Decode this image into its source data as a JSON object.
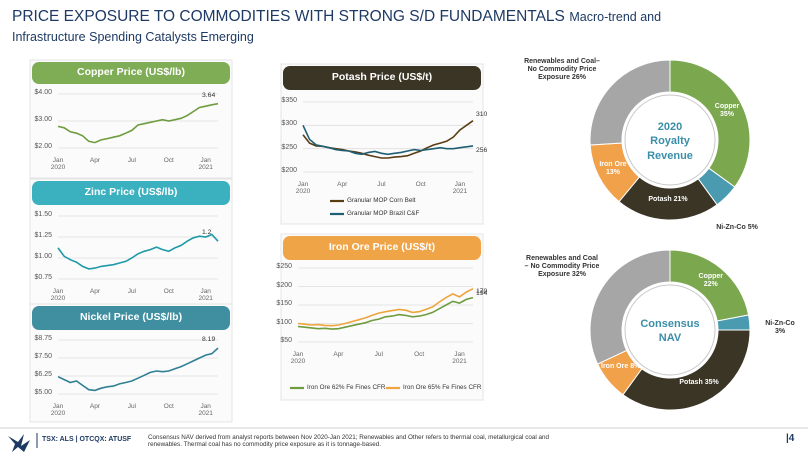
{
  "header": {
    "title": "PRICE EXPOSURE TO COMMODITIES WITH STRONG S/D FUNDAMENTALS",
    "subtitle": "Macro-trend and Infrastructure Spending Catalysts Emerging"
  },
  "chart_data": [
    {
      "type": "line",
      "title": "Copper Price (US$/lb)",
      "categories": [
        "Jan\n2020",
        null,
        null,
        null,
        null,
        null,
        "Apr",
        null,
        null,
        null,
        null,
        null,
        "Jul",
        null,
        null,
        null,
        null,
        null,
        "Oct",
        null,
        null,
        null,
        null,
        null,
        "Jan\n2021",
        null,
        null
      ],
      "series": [
        {
          "name": null,
          "color": "#6e9c3f",
          "values": [
            2.8,
            2.75,
            2.6,
            2.55,
            2.45,
            2.25,
            2.2,
            2.3,
            2.35,
            2.4,
            2.45,
            2.55,
            2.65,
            2.85,
            2.9,
            2.95,
            3.0,
            3.05,
            3.0,
            3.05,
            3.1,
            3.2,
            3.35,
            3.5,
            3.55,
            3.6,
            3.64
          ]
        }
      ],
      "ylim": [
        2,
        4
      ],
      "yticks": [
        {
          "value": 2,
          "label": "$2.00"
        },
        {
          "value": 3,
          "label": "$3.00"
        },
        {
          "value": 4,
          "label": "$4.00"
        }
      ],
      "grid": true,
      "color": "#7fad55"
    },
    {
      "type": "line",
      "title": "Zinc Price (US$/lb)",
      "categories": [
        "Jan\n2020",
        null,
        null,
        null,
        null,
        null,
        "Apr",
        null,
        null,
        null,
        null,
        null,
        "Jul",
        null,
        null,
        null,
        null,
        null,
        "Oct",
        null,
        null,
        null,
        null,
        null,
        "Jan\n2021",
        null,
        null
      ],
      "series": [
        {
          "name": null,
          "color": "#1e9aa8",
          "values": [
            1.12,
            1.02,
            0.98,
            0.95,
            0.9,
            0.87,
            0.88,
            0.9,
            0.91,
            0.92,
            0.94,
            0.96,
            1.0,
            1.05,
            1.08,
            1.1,
            1.13,
            1.1,
            1.08,
            1.12,
            1.15,
            1.2,
            1.24,
            1.26,
            1.25,
            1.28,
            1.2
          ]
        }
      ],
      "ylim": [
        0.75,
        1.5
      ],
      "yticks": [
        {
          "value": 0.75,
          "label": "$0.75"
        },
        {
          "value": 1,
          "label": "$1.00"
        },
        {
          "value": 1.25,
          "label": "$1.25"
        },
        {
          "value": 1.5,
          "label": "$1.50"
        }
      ],
      "grid": true,
      "color": "#3bb0bf"
    },
    {
      "type": "line",
      "title": "Nickel Price (US$/lb)",
      "categories": [
        "Jan\n2020",
        null,
        null,
        null,
        null,
        null,
        "Apr",
        null,
        null,
        null,
        null,
        null,
        "Jul",
        null,
        null,
        null,
        null,
        null,
        "Oct",
        null,
        null,
        null,
        null,
        null,
        "Jan\n2021",
        null,
        null
      ],
      "series": [
        {
          "name": null,
          "color": "#2f7f95",
          "values": [
            6.2,
            6.0,
            5.8,
            5.9,
            5.6,
            5.3,
            5.25,
            5.4,
            5.5,
            5.55,
            5.7,
            5.8,
            5.9,
            6.1,
            6.3,
            6.5,
            6.6,
            6.55,
            6.6,
            6.75,
            6.9,
            7.1,
            7.3,
            7.5,
            7.7,
            7.8,
            8.19
          ]
        }
      ],
      "ylim": [
        5,
        8.75
      ],
      "yticks": [
        {
          "value": 5,
          "label": "$5.00"
        },
        {
          "value": 6.25,
          "label": "$6.25"
        },
        {
          "value": 7.5,
          "label": "$7.50"
        },
        {
          "value": 8.75,
          "label": "$8.75"
        }
      ],
      "grid": true,
      "color": "#3f8fa0"
    },
    {
      "type": "line",
      "title": "Potash Price (US$/t)",
      "categories": [
        "Jan\n2020",
        null,
        null,
        null,
        null,
        null,
        "Apr",
        null,
        null,
        null,
        null,
        null,
        "Jul",
        null,
        null,
        null,
        null,
        null,
        "Oct",
        null,
        null,
        null,
        null,
        null,
        "Jan\n2021",
        null,
        null
      ],
      "series": [
        {
          "name": "Granular MOP Corn Belt",
          "color": "#5a3d12",
          "values": [
            280,
            262,
            256,
            255,
            252,
            250,
            248,
            245,
            243,
            240,
            236,
            233,
            230,
            230,
            232,
            233,
            235,
            240,
            245,
            252,
            258,
            262,
            266,
            275,
            290,
            300,
            310
          ]
        },
        {
          "name": "Granular MOP Brazil C&F",
          "color": "#1f5f73",
          "values": [
            300,
            270,
            258,
            255,
            252,
            248,
            246,
            245,
            240,
            238,
            242,
            244,
            240,
            238,
            240,
            242,
            245,
            248,
            246,
            248,
            250,
            252,
            250,
            250,
            252,
            254,
            256
          ]
        }
      ],
      "ylim": [
        200,
        350
      ],
      "yticks": [
        {
          "value": 200,
          "label": "$200"
        },
        {
          "value": 250,
          "label": "$250"
        },
        {
          "value": 300,
          "label": "$300"
        },
        {
          "value": 350,
          "label": "$350"
        }
      ],
      "grid": true,
      "color": "#3b3526"
    },
    {
      "type": "line",
      "title": "Iron Ore Price (US$/t)",
      "categories": [
        "Jan\n2020",
        null,
        null,
        null,
        null,
        null,
        "Apr",
        null,
        null,
        null,
        null,
        null,
        "Jul",
        null,
        null,
        null,
        null,
        null,
        "Oct",
        null,
        null,
        null,
        null,
        null,
        "Jan\n2021",
        null,
        null
      ],
      "series": [
        {
          "name": "Iron Ore 62% Fe Fines CFR",
          "color": "#6e9c3f",
          "values": [
            92,
            90,
            88,
            86,
            87,
            85,
            86,
            90,
            94,
            98,
            102,
            108,
            112,
            118,
            120,
            124,
            122,
            118,
            120,
            124,
            130,
            140,
            150,
            160,
            155,
            165,
            170
          ]
        },
        {
          "name": "Iron Ore 65% Fe Fines CFR",
          "color": "#eea53e",
          "values": [
            100,
            98,
            96,
            97,
            95,
            94,
            96,
            100,
            105,
            110,
            115,
            122,
            128,
            132,
            135,
            138,
            136,
            130,
            132,
            138,
            145,
            158,
            170,
            180,
            172,
            185,
            194
          ]
        }
      ],
      "ylim": [
        50,
        250
      ],
      "yticks": [
        {
          "value": 50,
          "label": "$50"
        },
        {
          "value": 100,
          "label": "$100"
        },
        {
          "value": 150,
          "label": "$150"
        },
        {
          "value": 200,
          "label": "$200"
        },
        {
          "value": 250,
          "label": "$250"
        }
      ],
      "grid": true,
      "color": "#f0a448"
    },
    {
      "type": "pie",
      "title": "2020 Royalty Revenue",
      "categories": [
        "Copper",
        "Ni-Zn-Co",
        "Potash",
        "Iron Ore",
        "Renewables and Coal– No Commodity Price Exposure"
      ],
      "values": [
        35,
        5,
        21,
        13,
        26
      ],
      "value_labels": [
        "35%",
        "5%",
        "21%",
        "13%",
        "26%"
      ],
      "colors": [
        "#7ba84f",
        "#4a9bb0",
        "#3b3526",
        "#f0a14a",
        "#a6a6a6"
      ]
    },
    {
      "type": "pie",
      "title": "Consensus NAV",
      "categories": [
        "Copper",
        "Ni-Zn-Co",
        "Potash",
        "Iron Ore",
        "Renewables and Coal – No Commodity Price Exposure"
      ],
      "values": [
        22,
        3,
        35,
        8,
        32
      ],
      "value_labels": [
        "22%",
        "3%",
        "35%",
        "8%",
        "32%"
      ],
      "colors": [
        "#7ba84f",
        "#4a9bb0",
        "#3b3526",
        "#f0a14a",
        "#a6a6a6"
      ]
    }
  ],
  "footer": {
    "ticker": "TSX: ALS | OTCQX: ATUSF",
    "note": "Consensus NAV derived from analyst reports between Nov 2020-Jan 2021; Renewables and Other refers to thermal coal, metallurgical coal and renewables. Thermal coal has no commodity price exposure as it is tonnage-based.",
    "page": "|4"
  }
}
